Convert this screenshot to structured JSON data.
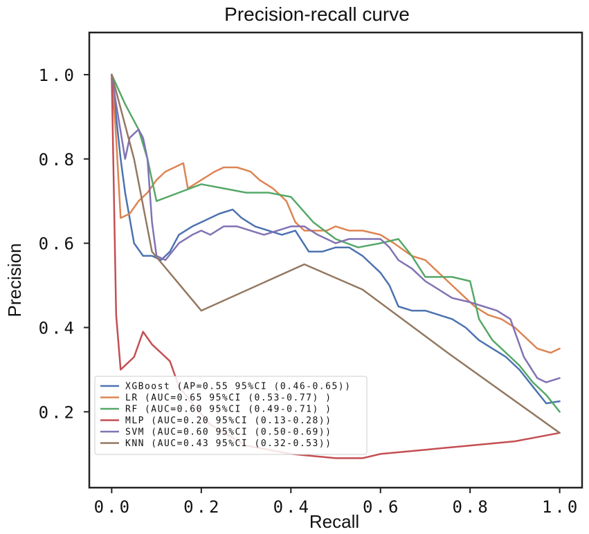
{
  "chart_data": {
    "type": "line",
    "title": "Precision-recall curve",
    "xlabel": "Recall",
    "ylabel": "Precision",
    "xlim": [
      -0.05,
      1.05
    ],
    "ylim": [
      0.02,
      1.1
    ],
    "xticks": [
      0.0,
      0.2,
      0.4,
      0.6,
      0.8,
      1.0
    ],
    "xtick_labels": [
      "0.0",
      "0.2",
      "0.4",
      "0.6",
      "0.8",
      "1.0"
    ],
    "yticks": [
      0.2,
      0.4,
      0.6,
      0.8,
      1.0
    ],
    "ytick_labels": [
      "0.2",
      "0.4",
      "0.6",
      "0.8",
      "1.0"
    ],
    "grid": false,
    "legend_position": "lower-left",
    "series": [
      {
        "name": "XGBoost",
        "legend": "XGBoost (AP=0.55 95%CI (0.46-0.65))",
        "color": "#4c72b0",
        "x": [
          0.0,
          0.01,
          0.02,
          0.03,
          0.05,
          0.07,
          0.09,
          0.11,
          0.13,
          0.15,
          0.18,
          0.2,
          0.22,
          0.24,
          0.27,
          0.29,
          0.32,
          0.35,
          0.38,
          0.41,
          0.44,
          0.47,
          0.5,
          0.53,
          0.56,
          0.58,
          0.6,
          0.62,
          0.64,
          0.67,
          0.7,
          0.73,
          0.76,
          0.79,
          0.82,
          0.85,
          0.88,
          0.91,
          0.94,
          0.97,
          1.0
        ],
        "y": [
          1.0,
          0.9,
          0.8,
          0.72,
          0.6,
          0.57,
          0.57,
          0.56,
          0.58,
          0.62,
          0.64,
          0.65,
          0.66,
          0.67,
          0.68,
          0.66,
          0.64,
          0.63,
          0.62,
          0.63,
          0.58,
          0.58,
          0.59,
          0.59,
          0.57,
          0.55,
          0.53,
          0.5,
          0.45,
          0.44,
          0.44,
          0.43,
          0.42,
          0.4,
          0.37,
          0.35,
          0.33,
          0.3,
          0.26,
          0.22,
          0.225
        ]
      },
      {
        "name": "LR",
        "legend": "LR (AUC=0.65 95%CI (0.53-0.77) )",
        "color": "#dd8452",
        "x": [
          0.0,
          0.01,
          0.02,
          0.04,
          0.06,
          0.08,
          0.1,
          0.12,
          0.14,
          0.16,
          0.17,
          0.2,
          0.23,
          0.25,
          0.28,
          0.31,
          0.33,
          0.36,
          0.39,
          0.41,
          0.43,
          0.45,
          0.48,
          0.5,
          0.53,
          0.56,
          0.6,
          0.63,
          0.67,
          0.7,
          0.73,
          0.75,
          0.78,
          0.81,
          0.84,
          0.87,
          0.9,
          0.92,
          0.95,
          0.98,
          1.0
        ],
        "y": [
          1.0,
          0.85,
          0.66,
          0.67,
          0.7,
          0.72,
          0.75,
          0.77,
          0.78,
          0.79,
          0.73,
          0.75,
          0.77,
          0.78,
          0.78,
          0.77,
          0.75,
          0.73,
          0.7,
          0.65,
          0.63,
          0.63,
          0.63,
          0.64,
          0.63,
          0.63,
          0.62,
          0.6,
          0.57,
          0.56,
          0.53,
          0.51,
          0.48,
          0.45,
          0.43,
          0.42,
          0.4,
          0.38,
          0.35,
          0.34,
          0.35
        ]
      },
      {
        "name": "RF",
        "legend": "RF (AUC=0.60 95%CI (0.49-0.71) )",
        "color": "#55a868",
        "x": [
          0.0,
          0.03,
          0.06,
          0.08,
          0.1,
          0.15,
          0.2,
          0.25,
          0.3,
          0.35,
          0.4,
          0.45,
          0.5,
          0.55,
          0.6,
          0.64,
          0.67,
          0.7,
          0.73,
          0.76,
          0.8,
          0.82,
          0.85,
          0.88,
          0.91,
          0.94,
          0.97,
          1.0
        ],
        "y": [
          1.0,
          0.93,
          0.87,
          0.8,
          0.7,
          0.72,
          0.74,
          0.73,
          0.72,
          0.72,
          0.71,
          0.65,
          0.61,
          0.59,
          0.6,
          0.61,
          0.57,
          0.52,
          0.52,
          0.52,
          0.51,
          0.42,
          0.37,
          0.34,
          0.31,
          0.27,
          0.24,
          0.2
        ]
      },
      {
        "name": "MLP",
        "legend": "MLP (AUC=0.20 95%CI (0.13-0.28))",
        "color": "#c44e52",
        "x": [
          0.0,
          0.01,
          0.02,
          0.03,
          0.05,
          0.07,
          0.09,
          0.11,
          0.13,
          0.15,
          0.18,
          0.22,
          0.3,
          0.4,
          0.5,
          0.56,
          0.6,
          0.7,
          0.8,
          0.9,
          1.0
        ],
        "y": [
          1.0,
          0.43,
          0.3,
          0.31,
          0.33,
          0.39,
          0.36,
          0.34,
          0.32,
          0.26,
          0.22,
          0.17,
          0.12,
          0.1,
          0.09,
          0.09,
          0.1,
          0.11,
          0.12,
          0.13,
          0.15
        ]
      },
      {
        "name": "SVM",
        "legend": "SVM (AUC=0.60 95%CI (0.50-0.69))",
        "color": "#8172b3",
        "x": [
          0.0,
          0.01,
          0.03,
          0.04,
          0.06,
          0.07,
          0.08,
          0.09,
          0.1,
          0.12,
          0.15,
          0.18,
          0.2,
          0.22,
          0.25,
          0.28,
          0.31,
          0.34,
          0.37,
          0.4,
          0.43,
          0.46,
          0.5,
          0.53,
          0.56,
          0.6,
          0.62,
          0.64,
          0.67,
          0.7,
          0.73,
          0.76,
          0.8,
          0.83,
          0.86,
          0.89,
          0.92,
          0.95,
          0.97,
          1.0
        ],
        "y": [
          1.0,
          0.93,
          0.8,
          0.85,
          0.87,
          0.85,
          0.8,
          0.65,
          0.57,
          0.56,
          0.6,
          0.62,
          0.63,
          0.62,
          0.64,
          0.64,
          0.63,
          0.62,
          0.63,
          0.64,
          0.64,
          0.62,
          0.6,
          0.61,
          0.61,
          0.61,
          0.59,
          0.56,
          0.54,
          0.51,
          0.49,
          0.47,
          0.46,
          0.45,
          0.44,
          0.42,
          0.33,
          0.28,
          0.27,
          0.28
        ]
      },
      {
        "name": "KNN",
        "legend": "KNN (AUC=0.43 95%CI (0.32-0.53))",
        "color": "#937860",
        "x": [
          0.0,
          0.05,
          0.09,
          0.2,
          0.43,
          0.56,
          0.75,
          1.0
        ],
        "y": [
          1.0,
          0.8,
          0.58,
          0.44,
          0.55,
          0.49,
          0.34,
          0.15
        ]
      }
    ]
  }
}
